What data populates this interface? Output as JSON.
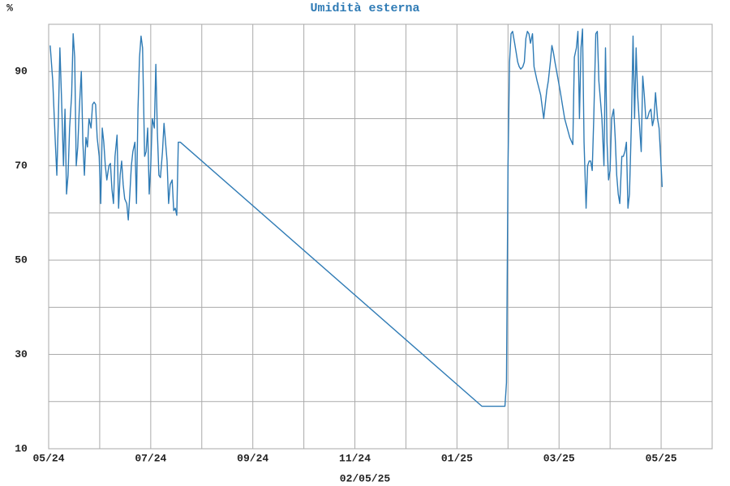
{
  "chart_data": {
    "type": "line",
    "title": "Umidità esterna",
    "y_unit": "%",
    "x_label": "02/05/25",
    "color": "#2f7bb5",
    "grid": true,
    "xlim": [
      5,
      18
    ],
    "xticks": [
      {
        "value": 5,
        "label": "05/24"
      },
      {
        "value": 7,
        "label": "07/24"
      },
      {
        "value": 9,
        "label": "09/24"
      },
      {
        "value": 11,
        "label": "11/24"
      },
      {
        "value": 13,
        "label": "01/25"
      },
      {
        "value": 15,
        "label": "03/25"
      },
      {
        "value": 17,
        "label": "05/25"
      }
    ],
    "xgrid_minor": [
      6,
      8,
      10,
      12,
      14,
      16,
      18
    ],
    "ylim": [
      10,
      100
    ],
    "yticks": [
      10,
      30,
      50,
      70,
      90
    ],
    "ygrid_minor": [
      20,
      40,
      60,
      80,
      100
    ],
    "x": [
      5.03,
      5.08,
      5.13,
      5.16,
      5.19,
      5.22,
      5.25,
      5.29,
      5.32,
      5.35,
      5.38,
      5.41,
      5.45,
      5.48,
      5.51,
      5.54,
      5.57,
      5.6,
      5.64,
      5.67,
      5.7,
      5.73,
      5.76,
      5.79,
      5.83,
      5.86,
      5.89,
      5.92,
      5.95,
      5.99,
      6.02,
      6.05,
      6.08,
      6.11,
      6.14,
      6.18,
      6.21,
      6.24,
      6.27,
      6.3,
      6.34,
      6.37,
      6.4,
      6.43,
      6.46,
      6.49,
      6.53,
      6.56,
      6.59,
      6.62,
      6.65,
      6.69,
      6.72,
      6.75,
      6.78,
      6.81,
      6.84,
      6.88,
      6.91,
      6.94,
      6.97,
      7.0,
      7.03,
      7.07,
      7.1,
      7.13,
      7.16,
      7.19,
      7.23,
      7.26,
      7.29,
      7.32,
      7.35,
      7.38,
      7.42,
      7.45,
      7.48,
      7.51,
      7.54,
      7.58,
      13.49,
      13.94,
      13.97,
      14.0,
      14.03,
      14.06,
      14.09,
      14.13,
      14.16,
      14.19,
      14.22,
      14.25,
      14.29,
      14.32,
      14.35,
      14.38,
      14.41,
      14.44,
      14.48,
      14.51,
      14.57,
      14.64,
      14.7,
      14.73,
      14.76,
      14.79,
      14.83,
      14.86,
      14.89,
      14.92,
      15.02,
      15.11,
      15.21,
      15.27,
      15.3,
      15.34,
      15.37,
      15.4,
      15.43,
      15.46,
      15.49,
      15.53,
      15.56,
      15.59,
      15.62,
      15.65,
      15.68,
      15.72,
      15.75,
      15.78,
      15.81,
      15.84,
      15.88,
      15.91,
      15.94,
      15.97,
      16.0,
      16.03,
      16.07,
      16.1,
      16.13,
      16.16,
      16.19,
      16.23,
      16.26,
      16.29,
      16.32,
      16.35,
      16.38,
      16.42,
      16.45,
      16.48,
      16.51,
      16.54,
      16.58,
      16.61,
      16.64,
      16.67,
      16.7,
      16.73,
      16.77,
      16.8,
      16.83,
      16.86,
      16.89,
      16.93,
      16.96,
      16.99,
      17.02
    ],
    "values": [
      95.5,
      88,
      75,
      68,
      80,
      95,
      85,
      70,
      82,
      64,
      68,
      78,
      85,
      98,
      93,
      70,
      74,
      82,
      90,
      75,
      68,
      76,
      74,
      80,
      78,
      83,
      83.5,
      83,
      76,
      72,
      62,
      78,
      75,
      70,
      67,
      70,
      70.5,
      65,
      62,
      72,
      76.5,
      61,
      68,
      71,
      66,
      63,
      62,
      58.5,
      64,
      70,
      73,
      75,
      62,
      82,
      93,
      97.5,
      95,
      72,
      73,
      78,
      64,
      70,
      80,
      78,
      91.5,
      77,
      68,
      67.5,
      73,
      79,
      75,
      71,
      62,
      66,
      67,
      60.5,
      61,
      59.5,
      75,
      75,
      19,
      19,
      24,
      70,
      92,
      98,
      98.5,
      96,
      94,
      92,
      91,
      90.5,
      91,
      92,
      97,
      98.5,
      98,
      96,
      98,
      91,
      88,
      85,
      80,
      83,
      86,
      88,
      92,
      95.5,
      94,
      92,
      86,
      80,
      76,
      74.5,
      93,
      95,
      98.5,
      80,
      95,
      99,
      75,
      61,
      70,
      71,
      71,
      69,
      80,
      98,
      98.5,
      88,
      84,
      80,
      70,
      95,
      75,
      67,
      69,
      80,
      82,
      76,
      68,
      64,
      62,
      72,
      72,
      73,
      75,
      61,
      64,
      80,
      97.5,
      80,
      95,
      85,
      78,
      73,
      89,
      85,
      80,
      80,
      81.5,
      82,
      78.5,
      80,
      85.5,
      80,
      78,
      72,
      65.5
    ]
  }
}
